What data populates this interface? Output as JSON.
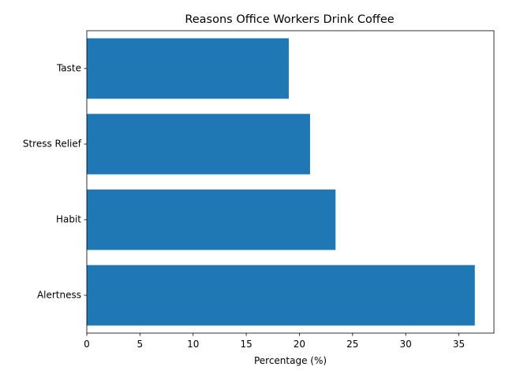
{
  "chart_data": {
    "type": "bar",
    "orientation": "horizontal",
    "title": "Reasons Office Workers Drink Coffee",
    "xlabel": "Percentage (%)",
    "ylabel": "",
    "categories": [
      "Alertness",
      "Habit",
      "Stress Relief",
      "Taste"
    ],
    "values": [
      36.5,
      23.4,
      21.0,
      19.0
    ],
    "xlim": [
      0,
      38.3
    ],
    "xticks": [
      0,
      5,
      10,
      15,
      20,
      25,
      30,
      35
    ],
    "grid": false,
    "legend": "none",
    "bar_color": "#1f77b4"
  }
}
